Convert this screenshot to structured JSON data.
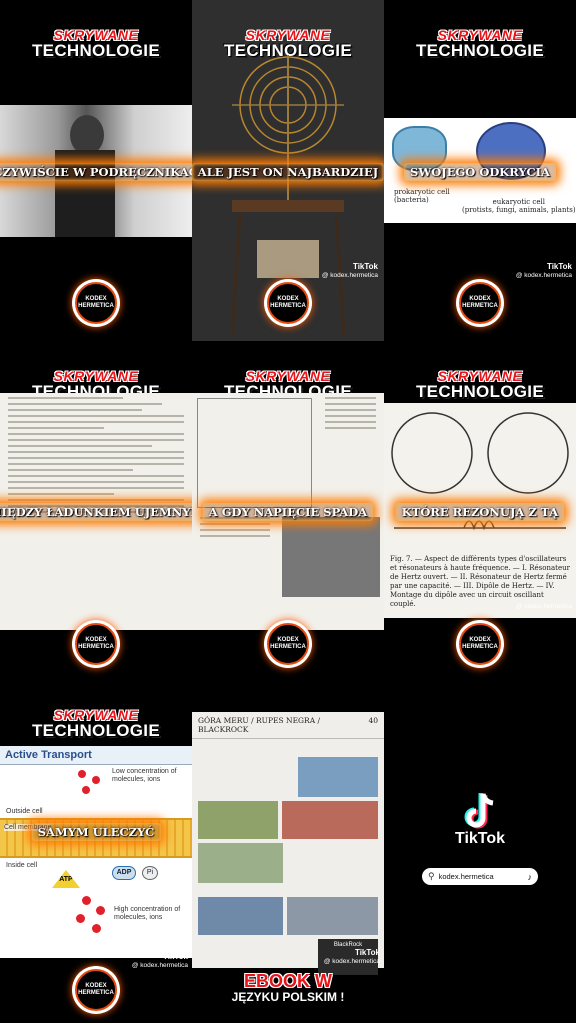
{
  "brand": {
    "header_line1": "SKRYWANE",
    "header_line2": "TECHNOLOGIE",
    "logo_line1": "KODEX",
    "logo_line2": "HERMETICA",
    "watermark_app": "TikTok",
    "watermark_user": "@ kodex.hermetica"
  },
  "colors": {
    "accent_red": "#e8141a",
    "glow_orange": "#ff7a00",
    "background": "#000000"
  },
  "tiles": [
    {
      "caption": "OCZYWIŚCIE W PODRĘCZNIKACH"
    },
    {
      "caption": "ALE JEST ON NAJBARDZIEJ"
    },
    {
      "caption": "SWOJEGO ODKRYCIA",
      "labels": {
        "left": "prokaryotic cell",
        "left_sub": "(bacteria)",
        "right": "eukaryotic cell",
        "right_sub": "(protists, fungi, animals, plants)"
      }
    },
    {
      "caption": "MIĘDZY ŁADUNKIEM UJEMNYM"
    },
    {
      "caption": "A GDY NAPIĘCIE SPADA"
    },
    {
      "caption": "KTÓRE REZONUJĄ Z TĄ",
      "figure_caption": "Fig. 7. — Aspect de différents types d'oscillateurs et résonateurs à haute fréquence. — I. Résonateur de Hertz ouvert. — II. Résonateur de Hertz fermé par une capacité. — III. Dipôle de Hertz. — IV. Montage du dipôle avec un circuit oscillant couplé."
    },
    {
      "caption": "SAMYM ULECZYĆ",
      "diagram": {
        "title": "Active Transport",
        "low_label": "Low concentration of molecules, ions",
        "outside": "Outside cell",
        "membrane": "Cell membrane",
        "inside": "Inside cell",
        "atp": "ATP",
        "adp": "ADP",
        "pi": "Pi",
        "high_label": "High concentration of molecules, ions"
      }
    },
    {
      "page_title": "GÓRA MERU / RUPES NEGRA / BLACKROCK",
      "page_number": "40",
      "book_label": "BlackRock",
      "banner_line1": "EBOOK W",
      "banner_line2": "JĘZYKU POLSKIM !"
    }
  ],
  "end_card": {
    "app": "TikTok",
    "user": "kodex.hermetica"
  }
}
